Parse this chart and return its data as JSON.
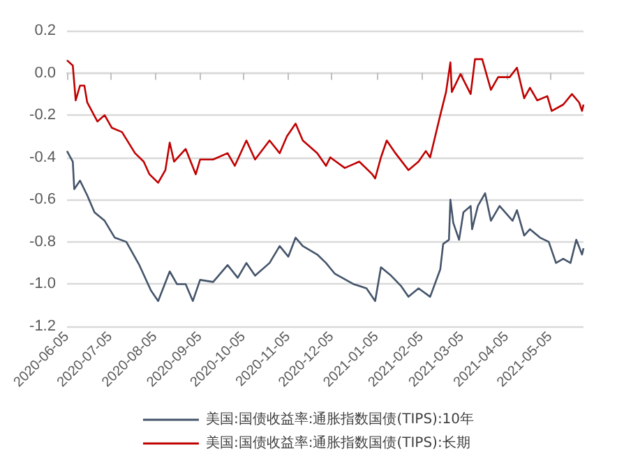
{
  "chart_data": {
    "type": "line",
    "xlim": [
      "2020-06-05",
      "2021-05-28"
    ],
    "xticks": [
      "2020-06-05",
      "2020-07-05",
      "2020-08-05",
      "2020-09-05",
      "2020-10-05",
      "2020-11-05",
      "2020-12-05",
      "2021-01-05",
      "2021-02-05",
      "2021-03-05",
      "2021-04-05",
      "2021-05-05"
    ],
    "ylim": [
      -1.2,
      0.2
    ],
    "yticks": [
      {
        "value": -1.2,
        "label": "-1.2"
      },
      {
        "value": -1.0,
        "label": "-1.0"
      },
      {
        "value": -0.8,
        "label": "-0.8"
      },
      {
        "value": -0.6,
        "label": "-0.6"
      },
      {
        "value": -0.4,
        "label": "-0.4"
      },
      {
        "value": -0.2,
        "label": "-0.2"
      },
      {
        "value": 0,
        "label": "0.0"
      },
      {
        "value": 0.2,
        "label": "0.2"
      }
    ],
    "grid": "y",
    "legend": "bottom",
    "marker": "none",
    "line_style": "solid",
    "series": [
      {
        "name": "美国:国债收益率:通胀指数国债(TIPS):10年",
        "color": "#44546a",
        "x": [
          "2020-06-05",
          "2020-06-09",
          "2020-06-10",
          "2020-06-14",
          "2020-06-19",
          "2020-06-24",
          "2020-07-01",
          "2020-07-08",
          "2020-07-16",
          "2020-07-25",
          "2020-08-02",
          "2020-08-07",
          "2020-08-15",
          "2020-08-20",
          "2020-08-26",
          "2020-08-31",
          "2020-09-05",
          "2020-09-14",
          "2020-09-24",
          "2020-10-01",
          "2020-10-07",
          "2020-10-13",
          "2020-10-23",
          "2020-10-30",
          "2020-11-05",
          "2020-11-10",
          "2020-11-15",
          "2020-11-25",
          "2020-12-01",
          "2020-12-07",
          "2020-12-20",
          "2020-12-29",
          "2021-01-04",
          "2021-01-08",
          "2021-01-15",
          "2021-01-22",
          "2021-01-27",
          "2021-02-03",
          "2021-02-11",
          "2021-02-18",
          "2021-02-20",
          "2021-02-24",
          "2021-02-25",
          "2021-02-27",
          "2021-03-03",
          "2021-03-06",
          "2021-03-11",
          "2021-03-12",
          "2021-03-16",
          "2021-03-21",
          "2021-03-25",
          "2021-03-31",
          "2021-04-09",
          "2021-04-12",
          "2021-04-17",
          "2021-04-21",
          "2021-04-28",
          "2021-05-04",
          "2021-05-09",
          "2021-05-14",
          "2021-05-19",
          "2021-05-23",
          "2021-05-27",
          "2021-05-28"
        ],
        "values": [
          -0.37,
          -0.42,
          -0.55,
          -0.51,
          -0.58,
          -0.66,
          -0.7,
          -0.78,
          -0.8,
          -0.91,
          -1.03,
          -1.08,
          -0.94,
          -1.0,
          -1.0,
          -1.08,
          -0.98,
          -0.99,
          -0.91,
          -0.97,
          -0.9,
          -0.96,
          -0.9,
          -0.82,
          -0.87,
          -0.78,
          -0.82,
          -0.86,
          -0.9,
          -0.95,
          -1.0,
          -1.02,
          -1.08,
          -0.92,
          -0.96,
          -1.01,
          -1.06,
          -1.02,
          -1.06,
          -0.93,
          -0.81,
          -0.79,
          -0.6,
          -0.71,
          -0.79,
          -0.66,
          -0.63,
          -0.74,
          -0.63,
          -0.57,
          -0.7,
          -0.63,
          -0.7,
          -0.65,
          -0.77,
          -0.74,
          -0.78,
          -0.8,
          -0.9,
          -0.88,
          -0.9,
          -0.79,
          -0.86,
          -0.83
        ]
      },
      {
        "name": "美国:国债收益率:通胀指数国债(TIPS):长期",
        "color": "#c00000",
        "x": [
          "2020-06-05",
          "2020-06-09",
          "2020-06-11",
          "2020-06-14",
          "2020-06-17",
          "2020-06-19",
          "2020-06-26",
          "2020-07-01",
          "2020-07-06",
          "2020-07-13",
          "2020-07-22",
          "2020-07-28",
          "2020-08-01",
          "2020-08-07",
          "2020-08-12",
          "2020-08-15",
          "2020-08-18",
          "2020-08-26",
          "2020-09-02",
          "2020-09-05",
          "2020-09-14",
          "2020-09-24",
          "2020-09-29",
          "2020-10-07",
          "2020-10-13",
          "2020-10-23",
          "2020-10-30",
          "2020-11-04",
          "2020-11-10",
          "2020-11-15",
          "2020-11-25",
          "2020-12-01",
          "2020-12-04",
          "2020-12-14",
          "2020-12-24",
          "2021-01-02",
          "2021-01-04",
          "2021-01-08",
          "2021-01-12",
          "2021-01-18",
          "2021-01-27",
          "2021-02-03",
          "2021-02-08",
          "2021-02-11",
          "2021-02-18",
          "2021-02-22",
          "2021-02-25",
          "2021-02-26",
          "2021-03-04",
          "2021-03-11",
          "2021-03-14",
          "2021-03-19",
          "2021-03-25",
          "2021-03-30",
          "2021-04-07",
          "2021-04-12",
          "2021-04-17",
          "2021-04-21",
          "2021-04-26",
          "2021-05-03",
          "2021-05-06",
          "2021-05-14",
          "2021-05-20",
          "2021-05-25",
          "2021-05-27",
          "2021-05-28"
        ],
        "values": [
          0.06,
          0.035,
          -0.13,
          -0.06,
          -0.06,
          -0.14,
          -0.23,
          -0.2,
          -0.26,
          -0.28,
          -0.38,
          -0.42,
          -0.48,
          -0.52,
          -0.46,
          -0.33,
          -0.42,
          -0.36,
          -0.48,
          -0.41,
          -0.41,
          -0.38,
          -0.44,
          -0.32,
          -0.41,
          -0.32,
          -0.38,
          -0.3,
          -0.24,
          -0.32,
          -0.38,
          -0.44,
          -0.4,
          -0.45,
          -0.42,
          -0.48,
          -0.5,
          -0.4,
          -0.32,
          -0.38,
          -0.46,
          -0.42,
          -0.37,
          -0.4,
          -0.2,
          -0.09,
          0.05,
          -0.09,
          -0.005,
          -0.1,
          0.065,
          0.065,
          -0.08,
          -0.02,
          -0.02,
          0.025,
          -0.12,
          -0.07,
          -0.13,
          -0.11,
          -0.18,
          -0.15,
          -0.1,
          -0.14,
          -0.18,
          -0.15
        ]
      }
    ]
  }
}
